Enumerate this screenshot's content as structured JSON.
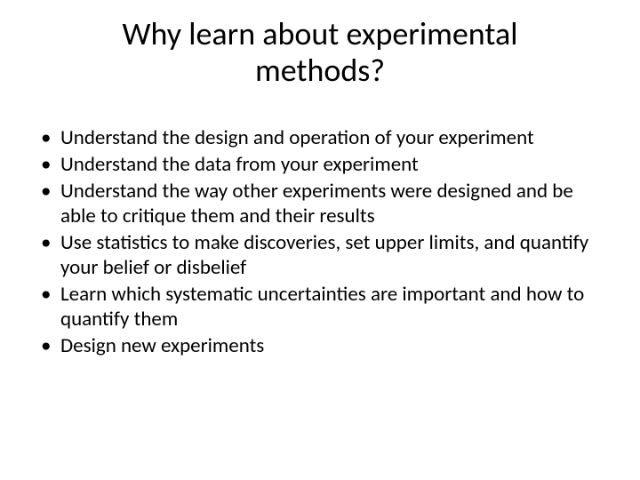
{
  "slide": {
    "title": "Why learn about experimental methods?",
    "bullets": [
      "Understand the design and operation of your experiment",
      "Understand the data from your experiment",
      "Understand the way other experiments were designed and be able to critique them and their results",
      "Use statistics to make discoveries, set upper limits, and quantify your belief or disbelief",
      "Learn which systematic uncertainties are important and how to quantify them",
      "Design new experiments"
    ],
    "styling": {
      "background_color": "#ffffff",
      "text_color": "#000000",
      "font_family": "Calibri",
      "title_fontsize": 36,
      "title_align": "center",
      "body_fontsize": 23,
      "bullet_char": "•",
      "slide_width": 720,
      "slide_height": 540
    }
  }
}
